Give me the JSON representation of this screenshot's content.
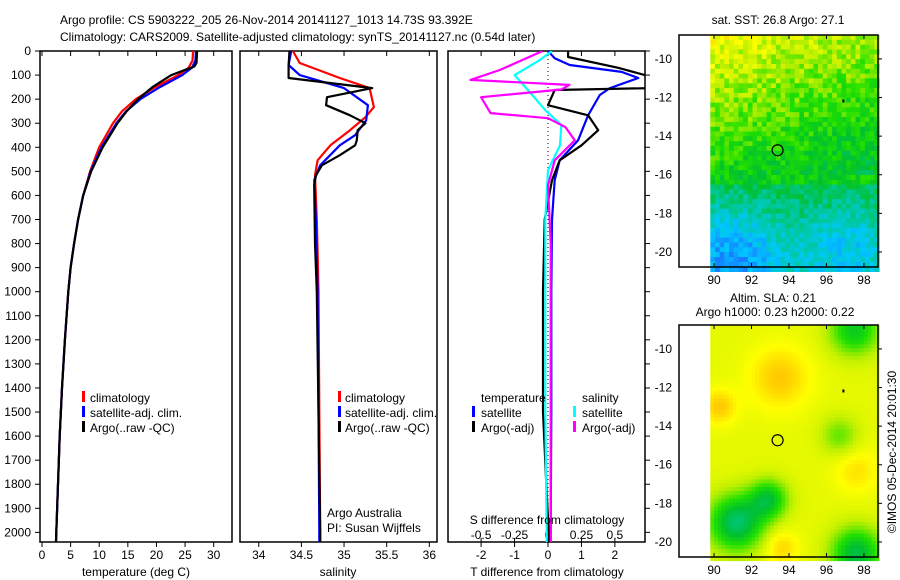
{
  "header": {
    "line1": "Argo profile: CS 5903222_205 26-Nov-2014 20141127_1013 14.73S 93.392E",
    "line2": "Climatology: CARS2009. Satellite-adjusted climatology: synTS_20141127.nc (0.54d later)"
  },
  "credit": "©IMOS 05-Dec-2014 20:01:30",
  "attribution": {
    "line1": "Argo Australia",
    "line2": "PI: Susan Wijffels"
  },
  "chart_data": [
    {
      "type": "line",
      "id": "temperature",
      "xlabel": "temperature (deg C)",
      "ylabel": "",
      "xticks": [
        0,
        5,
        10,
        15,
        20,
        25,
        30
      ],
      "xlim": [
        -0.35,
        33.2
      ],
      "ylim": [
        2040,
        0
      ],
      "yticks": [
        0,
        100,
        200,
        300,
        400,
        500,
        600,
        700,
        800,
        900,
        1000,
        1100,
        1200,
        1300,
        1400,
        1500,
        1600,
        1700,
        1800,
        1900,
        2000
      ],
      "series": [
        {
          "name": "climatology",
          "color": "#ff0000",
          "points": [
            [
              0,
              26.4
            ],
            [
              40,
              26.3
            ],
            [
              70,
              25.6
            ],
            [
              100,
              23.8
            ],
            [
              150,
              19.8
            ],
            [
              200,
              16.4
            ],
            [
              250,
              14.0
            ],
            [
              300,
              12.4
            ],
            [
              400,
              10.0
            ],
            [
              500,
              8.4
            ],
            [
              600,
              7.2
            ],
            [
              700,
              6.3
            ],
            [
              800,
              5.6
            ],
            [
              900,
              5.0
            ],
            [
              1000,
              4.6
            ],
            [
              1200,
              4.0
            ],
            [
              1400,
              3.5
            ],
            [
              1600,
              3.1
            ],
            [
              1800,
              2.8
            ],
            [
              2000,
              2.5
            ],
            [
              2040,
              2.45
            ]
          ]
        },
        {
          "name": "satellite-adj. clim.",
          "color": "#0000ff",
          "points": [
            [
              0,
              26.9
            ],
            [
              40,
              26.8
            ],
            [
              70,
              26.2
            ],
            [
              100,
              24.5
            ],
            [
              150,
              20.6
            ],
            [
              200,
              17.2
            ],
            [
              250,
              14.7
            ],
            [
              300,
              13.0
            ],
            [
              400,
              10.4
            ],
            [
              500,
              8.5
            ],
            [
              600,
              7.2
            ],
            [
              700,
              6.3
            ],
            [
              800,
              5.6
            ],
            [
              900,
              5.0
            ],
            [
              1000,
              4.6
            ],
            [
              1200,
              4.0
            ],
            [
              1400,
              3.5
            ],
            [
              1600,
              3.1
            ],
            [
              1800,
              2.8
            ],
            [
              2000,
              2.5
            ],
            [
              2040,
              2.45
            ]
          ]
        },
        {
          "name": "Argo(..raw -QC)",
          "color": "#000000",
          "points": [
            [
              0,
              27.1
            ],
            [
              50,
              27.0
            ],
            [
              65,
              26.6
            ],
            [
              80,
              24.8
            ],
            [
              100,
              22.6
            ],
            [
              150,
              19.3
            ],
            [
              200,
              16.8
            ],
            [
              250,
              14.8
            ],
            [
              300,
              13.2
            ],
            [
              400,
              10.6
            ],
            [
              500,
              8.6
            ],
            [
              600,
              7.2
            ],
            [
              700,
              6.3
            ],
            [
              800,
              5.6
            ],
            [
              900,
              5.0
            ],
            [
              1000,
              4.6
            ],
            [
              1200,
              4.0
            ],
            [
              1400,
              3.5
            ],
            [
              1600,
              3.1
            ],
            [
              1800,
              2.8
            ],
            [
              2000,
              2.5
            ],
            [
              2040,
              2.45
            ]
          ]
        }
      ],
      "legend": [
        "climatology",
        "satellite-adj. clim.",
        "Argo(..raw -QC)"
      ],
      "legend_position": "lower-center"
    },
    {
      "type": "line",
      "id": "salinity",
      "xlabel": "salinity",
      "xticks": [
        34,
        34.5,
        35,
        35.5,
        36
      ],
      "xlim": [
        33.78,
        36.09
      ],
      "ylim": [
        2040,
        0
      ],
      "series": [
        {
          "name": "climatology",
          "color": "#ff0000",
          "points": [
            [
              0,
              34.4
            ],
            [
              50,
              34.48
            ],
            [
              112,
              34.95
            ],
            [
              154,
              35.3
            ],
            [
              233,
              35.35
            ],
            [
              275,
              35.25
            ],
            [
              329,
              35.07
            ],
            [
              392,
              34.84
            ],
            [
              454,
              34.69
            ],
            [
              517,
              34.66
            ],
            [
              700,
              34.68
            ],
            [
              1000,
              34.7
            ],
            [
              1500,
              34.71
            ],
            [
              2000,
              34.72
            ],
            [
              2040,
              34.72
            ]
          ]
        },
        {
          "name": "satellite-adj. clim.",
          "color": "#0000ff",
          "points": [
            [
              0,
              34.38
            ],
            [
              58,
              34.35
            ],
            [
              100,
              34.48
            ],
            [
              154,
              35.0
            ],
            [
              225,
              35.28
            ],
            [
              288,
              35.26
            ],
            [
              350,
              35.13
            ],
            [
              392,
              34.95
            ],
            [
              475,
              34.72
            ],
            [
              537,
              34.65
            ],
            [
              700,
              34.67
            ],
            [
              1000,
              34.69
            ],
            [
              1500,
              34.7
            ],
            [
              2000,
              34.71
            ],
            [
              2040,
              34.71
            ]
          ]
        },
        {
          "name": "Argo(..raw -QC)",
          "color": "#000000",
          "points": [
            [
              0,
              34.36
            ],
            [
              60,
              34.35
            ],
            [
              112,
              34.35
            ],
            [
              154,
              35.33
            ],
            [
              192,
              34.8
            ],
            [
              225,
              34.79
            ],
            [
              267,
              35.07
            ],
            [
              300,
              35.25
            ],
            [
              329,
              35.16
            ],
            [
              371,
              35.15
            ],
            [
              392,
              35.13
            ],
            [
              433,
              34.95
            ],
            [
              475,
              34.74
            ],
            [
              517,
              34.67
            ],
            [
              558,
              34.65
            ],
            [
              800,
              34.66
            ],
            [
              1000,
              34.68
            ],
            [
              1500,
              34.7
            ],
            [
              2000,
              34.72
            ],
            [
              2040,
              34.72
            ]
          ]
        }
      ],
      "legend": [
        "climatology",
        "satellite-adj. clim.",
        "Argo(..raw -QC)"
      ],
      "legend_position": "lower-center"
    },
    {
      "type": "line",
      "id": "difference",
      "xlabel": "T difference from climatology",
      "xlabel_top": "S difference from climatology",
      "xticks": [
        -2,
        -1,
        0,
        1,
        2
      ],
      "xticks_S": [
        -0.5,
        -0.25,
        0,
        0.25,
        0.5
      ],
      "xticks_S_labels": [
        "-0.5",
        "-0.25",
        "0",
        "0.25",
        "0.5"
      ],
      "xlim": [
        -2.99,
        2.9
      ],
      "xlim_S": [
        -0.7475,
        0.725
      ],
      "ylim": [
        2040,
        0
      ],
      "legend_headers": [
        "temperature",
        "salinity"
      ],
      "legend_labels": [
        "satellite",
        "Argo(-adj)",
        "satellite",
        "Argo(-adj)"
      ],
      "series": [
        {
          "name": "temperature satellite",
          "axis": "T",
          "color": "#0000ff",
          "points": [
            [
              0,
              0
            ],
            [
              30,
              0.2
            ],
            [
              58,
              0.65
            ],
            [
              87,
              2.2
            ],
            [
              112,
              2.7
            ],
            [
              154,
              1.85
            ],
            [
              183,
              1.55
            ],
            [
              267,
              1.2
            ],
            [
              371,
              0.9
            ],
            [
              454,
              0.35
            ],
            [
              537,
              0.2
            ],
            [
              700,
              0.12
            ],
            [
              1000,
              0.1
            ],
            [
              1500,
              0.1
            ],
            [
              2000,
              0.08
            ],
            [
              2040,
              0.08
            ]
          ]
        },
        {
          "name": "temperature Argo(-adj)",
          "axis": "T",
          "color": "#000000",
          "points": [
            [
              0,
              0.6
            ],
            [
              25,
              0.6
            ],
            [
              70,
              2.1
            ],
            [
              108,
              3.1
            ],
            [
              154,
              3.1
            ],
            [
              162,
              0.2
            ],
            [
              225,
              0.0
            ],
            [
              267,
              1.2
            ],
            [
              329,
              1.5
            ],
            [
              392,
              1.0
            ],
            [
              454,
              0.35
            ],
            [
              537,
              0.12
            ],
            [
              700,
              -0.1
            ],
            [
              1000,
              -0.15
            ],
            [
              1500,
              -0.15
            ],
            [
              1800,
              -0.05
            ],
            [
              2000,
              0.02
            ],
            [
              2040,
              0.02
            ]
          ]
        },
        {
          "name": "salinity satellite",
          "axis": "S",
          "color": "#00ffff",
          "points": [
            [
              0,
              0.03
            ],
            [
              37,
              -0.06
            ],
            [
              100,
              -0.25
            ],
            [
              162,
              -0.15
            ],
            [
              246,
              -0.02
            ],
            [
              308,
              0.1
            ],
            [
              392,
              0.09
            ],
            [
              496,
              0.0
            ],
            [
              700,
              -0.02
            ],
            [
              1000,
              -0.02
            ],
            [
              1500,
              -0.02
            ],
            [
              2000,
              -0.01
            ],
            [
              2040,
              -0.01
            ]
          ]
        },
        {
          "name": "salinity Argo(-adj)",
          "axis": "S",
          "color": "#ff00ff",
          "points": [
            [
              0,
              -0.04
            ],
            [
              79,
              -0.36
            ],
            [
              120,
              -0.58
            ],
            [
              141,
              0.16
            ],
            [
              160,
              0.1
            ],
            [
              192,
              -0.5
            ],
            [
              258,
              -0.43
            ],
            [
              279,
              0.0
            ],
            [
              316,
              0.13
            ],
            [
              371,
              0.2
            ],
            [
              454,
              0.05
            ],
            [
              558,
              0.0
            ],
            [
              800,
              0.02
            ],
            [
              1200,
              0.02
            ],
            [
              1600,
              0.02
            ],
            [
              2000,
              0.02
            ],
            [
              2040,
              0.02
            ]
          ]
        }
      ],
      "legend_position": "lower-center"
    },
    {
      "type": "heatmap",
      "id": "sst-map",
      "title": "sat. SST: 26.8 Argo: 27.1",
      "xticks": [
        90,
        92,
        94,
        96,
        98
      ],
      "yticks": [
        -10,
        -12,
        -14,
        -16,
        -18,
        -20
      ],
      "xlim": [
        88.13,
        98.75
      ],
      "ylim": [
        -20.78,
        -8.76
      ],
      "data_lon_range": [
        89.8,
        98.75
      ],
      "argo_position": {
        "lon": 93.392,
        "lat": -14.73
      },
      "colors": {
        "cold": "#1e64ff",
        "mid": "#00c030",
        "warm": "#ffa000"
      }
    },
    {
      "type": "heatmap",
      "id": "sla-map",
      "title": "Altim. SLA: 0.21",
      "subtitle": "Argo h1000: 0.23 h2000: 0.22",
      "xticks": [
        90,
        92,
        94,
        96,
        98
      ],
      "yticks": [
        -10,
        -12,
        -14,
        -16,
        -18,
        -20
      ],
      "xlim": [
        88.13,
        98.75
      ],
      "ylim": [
        -20.78,
        -8.76
      ],
      "data_lon_range": [
        89.8,
        98.75
      ],
      "argo_position": {
        "lon": 93.392,
        "lat": -14.73
      }
    }
  ]
}
